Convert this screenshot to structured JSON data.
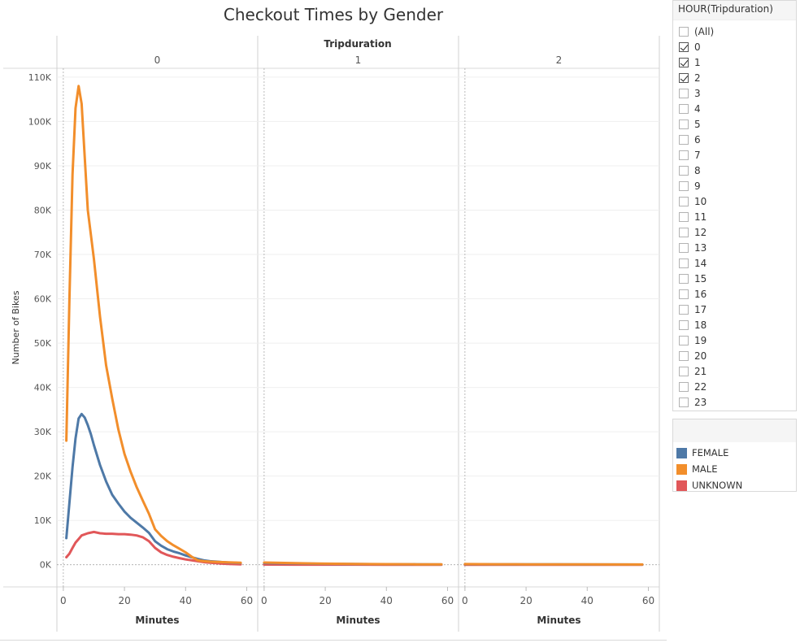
{
  "title": "Checkout Times by Gender",
  "chart_data": {
    "type": "line",
    "title": "Checkout Times by Gender",
    "column_header": "Tripduration",
    "panels": [
      "0",
      "1",
      "2"
    ],
    "xlabel": "Minutes",
    "ylabel": "Number of Bikes",
    "xlim": [
      -0.5,
      62
    ],
    "ylim": [
      -5000,
      112000
    ],
    "x_ticks": [
      0,
      20,
      40,
      60
    ],
    "x_tick_labels": [
      "0",
      "20",
      "40",
      "60"
    ],
    "y_ticks": [
      0,
      10000,
      20000,
      30000,
      40000,
      50000,
      60000,
      70000,
      80000,
      90000,
      100000,
      110000
    ],
    "y_tick_labels": [
      "0K",
      "10K",
      "20K",
      "30K",
      "40K",
      "50K",
      "60K",
      "70K",
      "80K",
      "90K",
      "100K",
      "110K"
    ],
    "series": [
      {
        "name": "FEMALE",
        "color": "#4e79a7",
        "panels": [
          {
            "x": [
              1,
              2,
              3,
              4,
              5,
              6,
              7,
              8,
              9,
              10,
              12,
              14,
              16,
              18,
              20,
              22,
              24,
              26,
              28,
              30,
              32,
              34,
              36,
              38,
              40,
              42,
              44,
              46,
              48,
              50,
              52,
              54,
              56,
              58
            ],
            "y": [
              6000,
              14000,
              22000,
              28500,
              33000,
              34000,
              33200,
              31500,
              29500,
              27000,
              22500,
              18800,
              15800,
              13800,
              12000,
              10600,
              9500,
              8400,
              7200,
              5300,
              4300,
              3500,
              3000,
              2600,
              2100,
              1700,
              1300,
              1000,
              800,
              700,
              600,
              500,
              450,
              400
            ]
          },
          {
            "x": [
              0,
              10,
              20,
              30,
              40,
              50,
              58
            ],
            "y": [
              400,
              300,
              200,
              160,
              120,
              90,
              70
            ]
          },
          {
            "x": [
              0,
              10,
              20,
              30,
              40,
              50,
              58
            ],
            "y": [
              120,
              100,
              90,
              80,
              70,
              60,
              50
            ]
          }
        ]
      },
      {
        "name": "MALE",
        "color": "#f28e2b",
        "panels": [
          {
            "x": [
              1,
              2,
              3,
              4,
              5,
              6,
              7,
              8,
              10,
              12,
              14,
              16,
              18,
              20,
              22,
              24,
              26,
              28,
              30,
              32,
              34,
              36,
              38,
              40,
              42,
              44,
              46,
              48,
              50,
              52,
              54,
              56,
              58
            ],
            "y": [
              28000,
              60000,
              88000,
              103000,
              108000,
              104000,
              92000,
              80000,
              69000,
              56000,
              45000,
              37500,
              30500,
              25000,
              21000,
              17500,
              14500,
              11500,
              8000,
              6500,
              5300,
              4400,
              3600,
              2800,
              1800,
              1000,
              800,
              700,
              650,
              600,
              550,
              500,
              450
            ]
          },
          {
            "x": [
              0,
              10,
              20,
              30,
              40,
              50,
              58
            ],
            "y": [
              500,
              350,
              250,
              180,
              130,
              100,
              80
            ]
          },
          {
            "x": [
              0,
              10,
              20,
              30,
              40,
              50,
              58
            ],
            "y": [
              150,
              120,
              100,
              90,
              80,
              70,
              60
            ]
          }
        ]
      },
      {
        "name": "UNKNOWN",
        "color": "#e15759",
        "panels": [
          {
            "x": [
              1,
              2,
              3,
              4,
              5,
              6,
              8,
              10,
              12,
              14,
              16,
              18,
              20,
              22,
              24,
              26,
              28,
              30,
              32,
              34,
              36,
              38,
              40,
              42,
              44,
              46,
              48,
              50,
              52,
              54,
              56,
              58
            ],
            "y": [
              1700,
              2500,
              3800,
              5000,
              5800,
              6600,
              7100,
              7400,
              7100,
              7000,
              7000,
              6900,
              6900,
              6800,
              6600,
              6200,
              5300,
              3800,
              2800,
              2200,
              1800,
              1500,
              1200,
              1000,
              800,
              600,
              450,
              350,
              250,
              180,
              130,
              100
            ]
          },
          {
            "x": [
              0,
              10,
              20,
              30,
              40,
              50,
              58
            ],
            "y": [
              40,
              30,
              25,
              20,
              15,
              10,
              10
            ]
          },
          {
            "x": [
              0,
              10,
              20,
              30,
              40,
              50,
              58
            ],
            "y": [
              15,
              12,
              10,
              8,
              6,
              5,
              5
            ]
          }
        ]
      }
    ],
    "legend_placement": "right"
  },
  "filter": {
    "header": "HOUR(Tripduration)",
    "items": [
      {
        "label": "(All)",
        "checked": false
      },
      {
        "label": "0",
        "checked": true
      },
      {
        "label": "1",
        "checked": true
      },
      {
        "label": "2",
        "checked": true
      },
      {
        "label": "3",
        "checked": false
      },
      {
        "label": "4",
        "checked": false
      },
      {
        "label": "5",
        "checked": false
      },
      {
        "label": "6",
        "checked": false
      },
      {
        "label": "7",
        "checked": false
      },
      {
        "label": "8",
        "checked": false
      },
      {
        "label": "9",
        "checked": false
      },
      {
        "label": "10",
        "checked": false
      },
      {
        "label": "11",
        "checked": false
      },
      {
        "label": "12",
        "checked": false
      },
      {
        "label": "13",
        "checked": false
      },
      {
        "label": "14",
        "checked": false
      },
      {
        "label": "15",
        "checked": false
      },
      {
        "label": "16",
        "checked": false
      },
      {
        "label": "17",
        "checked": false
      },
      {
        "label": "18",
        "checked": false
      },
      {
        "label": "19",
        "checked": false
      },
      {
        "label": "20",
        "checked": false
      },
      {
        "label": "21",
        "checked": false
      },
      {
        "label": "22",
        "checked": false
      },
      {
        "label": "23",
        "checked": false
      }
    ]
  },
  "legend": {
    "items": [
      {
        "label": "FEMALE",
        "color": "#4e79a7"
      },
      {
        "label": "MALE",
        "color": "#f28e2b"
      },
      {
        "label": "UNKNOWN",
        "color": "#e15759"
      }
    ]
  }
}
